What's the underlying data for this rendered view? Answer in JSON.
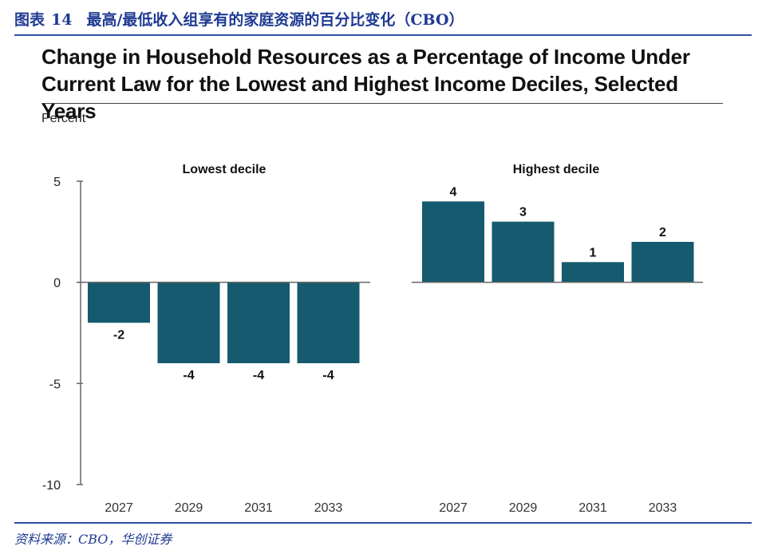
{
  "header": {
    "figure_label": "图表",
    "figure_number": "14",
    "title": "最高/最低收入组享有的家庭资源的百分比变化（CBO）"
  },
  "chart_title": "Change in Household Resources as a Percentage of Income Under Current Law for the Lowest and Highest Income Deciles, Selected Years",
  "y_unit": "Percent",
  "source": "资料来源：CBO，华创证券",
  "colors": {
    "bar": "#155a6e",
    "header": "#1f3a93",
    "axis": "#666666"
  },
  "chart_data": {
    "type": "bar",
    "ylabel": "Percent",
    "ylim": [
      -10,
      5
    ],
    "yticks": [
      5,
      0,
      -5,
      -10
    ],
    "panels": [
      {
        "name": "Lowest decile",
        "categories": [
          "2027",
          "2029",
          "2031",
          "2033"
        ],
        "values": [
          -2,
          -4,
          -4,
          -4
        ],
        "labels": [
          "-2",
          "-4",
          "-4",
          "-4"
        ]
      },
      {
        "name": "Highest decile",
        "categories": [
          "2027",
          "2029",
          "2031",
          "2033"
        ],
        "values": [
          4,
          3,
          1,
          2
        ],
        "labels": [
          "4",
          "3",
          "1",
          "2"
        ]
      }
    ]
  }
}
